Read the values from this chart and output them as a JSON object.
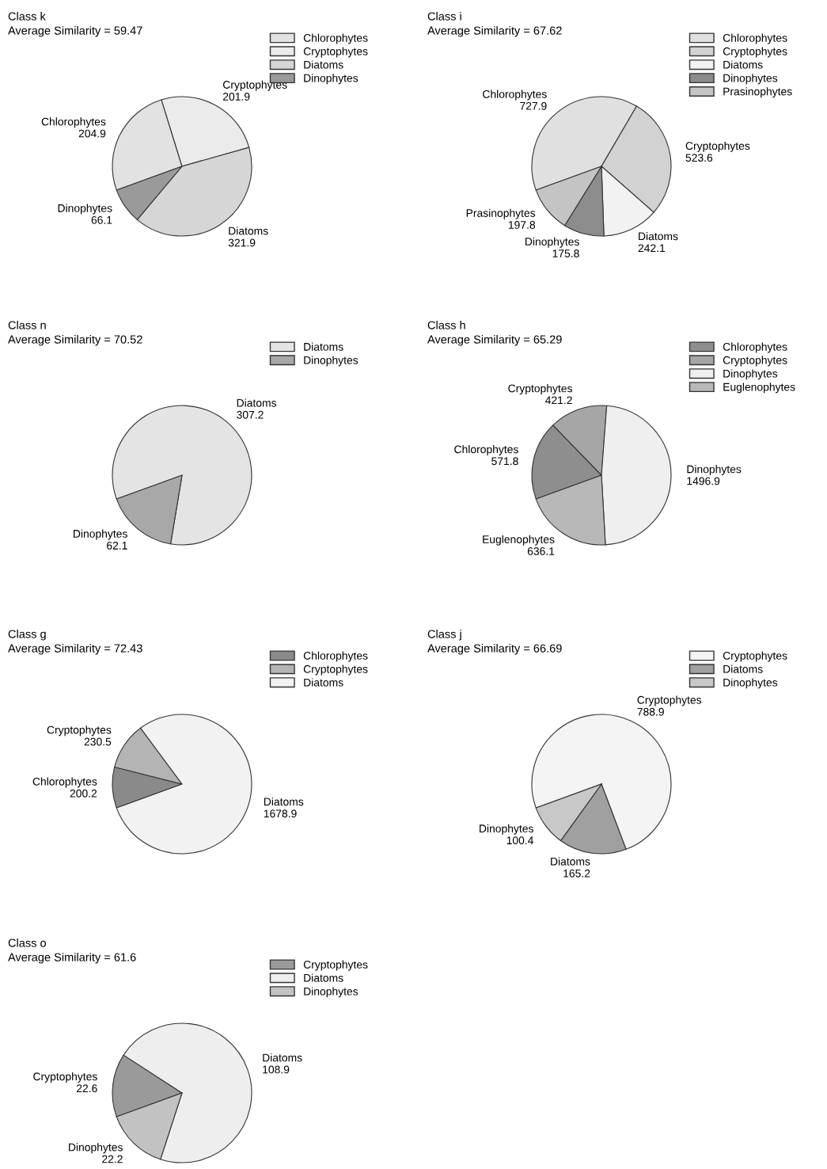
{
  "chart_data": [
    {
      "type": "pie",
      "title": "Class k",
      "subtitle": "Average Similarity = 59.47",
      "categories": [
        "Chlorophytes",
        "Cryptophytes",
        "Diatoms",
        "Dinophytes"
      ],
      "values": [
        204.9,
        201.9,
        321.9,
        66.1
      ],
      "colors": [
        "#e2e2e2",
        "#ebebeb",
        "#d6d6d6",
        "#9a9a9a"
      ],
      "data_labels": true,
      "legend": "top right"
    },
    {
      "type": "pie",
      "title": "Class i",
      "subtitle": "Average Similarity = 67.62",
      "categories": [
        "Chlorophytes",
        "Cryptophytes",
        "Diatoms",
        "Dinophytes",
        "Prasinophytes"
      ],
      "values": [
        727.9,
        523.6,
        242.1,
        175.8,
        197.8
      ],
      "colors": [
        "#e0e0e0",
        "#d2d2d2",
        "#f2f2f2",
        "#8c8c8c",
        "#c4c4c4"
      ],
      "data_labels": true,
      "legend": "top right"
    },
    {
      "type": "pie",
      "title": "Class n",
      "subtitle": "Average Similarity = 70.52",
      "categories": [
        "Diatoms",
        "Dinophytes"
      ],
      "values": [
        307.2,
        62.1
      ],
      "colors": [
        "#e4e4e4",
        "#a8a8a8"
      ],
      "data_labels": true,
      "legend": "top right"
    },
    {
      "type": "pie",
      "title": "Class h",
      "subtitle": "Average Similarity = 65.29",
      "categories": [
        "Chlorophytes",
        "Cryptophytes",
        "Dinophytes",
        "Euglenophytes"
      ],
      "values": [
        571.8,
        421.2,
        1496.9,
        636.1
      ],
      "colors": [
        "#8e8e8e",
        "#a6a6a6",
        "#efefef",
        "#b8b8b8"
      ],
      "data_labels": true,
      "legend": "top right"
    },
    {
      "type": "pie",
      "title": "Class g",
      "subtitle": "Average Similarity = 72.43",
      "categories": [
        "Chlorophytes",
        "Cryptophytes",
        "Diatoms"
      ],
      "values": [
        200.2,
        230.5,
        1678.9
      ],
      "colors": [
        "#8a8a8a",
        "#b4b4b4",
        "#f2f2f2"
      ],
      "data_labels": true,
      "legend": "top right"
    },
    {
      "type": "pie",
      "title": "Class j",
      "subtitle": "Average Similarity = 66.69",
      "categories": [
        "Cryptophytes",
        "Diatoms",
        "Dinophytes"
      ],
      "values": [
        788.9,
        165.2,
        100.4
      ],
      "colors": [
        "#f4f4f4",
        "#a0a0a0",
        "#c8c8c8"
      ],
      "data_labels": true,
      "legend": "top right"
    },
    {
      "type": "pie",
      "title": "Class o",
      "subtitle": "Average Similarity = 61.6",
      "categories": [
        "Cryptophytes",
        "Diatoms",
        "Dinophytes"
      ],
      "values": [
        22.6,
        108.9,
        22.2
      ],
      "colors": [
        "#9a9a9a",
        "#eeeeee",
        "#c2c2c2"
      ],
      "data_labels": true,
      "legend": "top right"
    }
  ]
}
